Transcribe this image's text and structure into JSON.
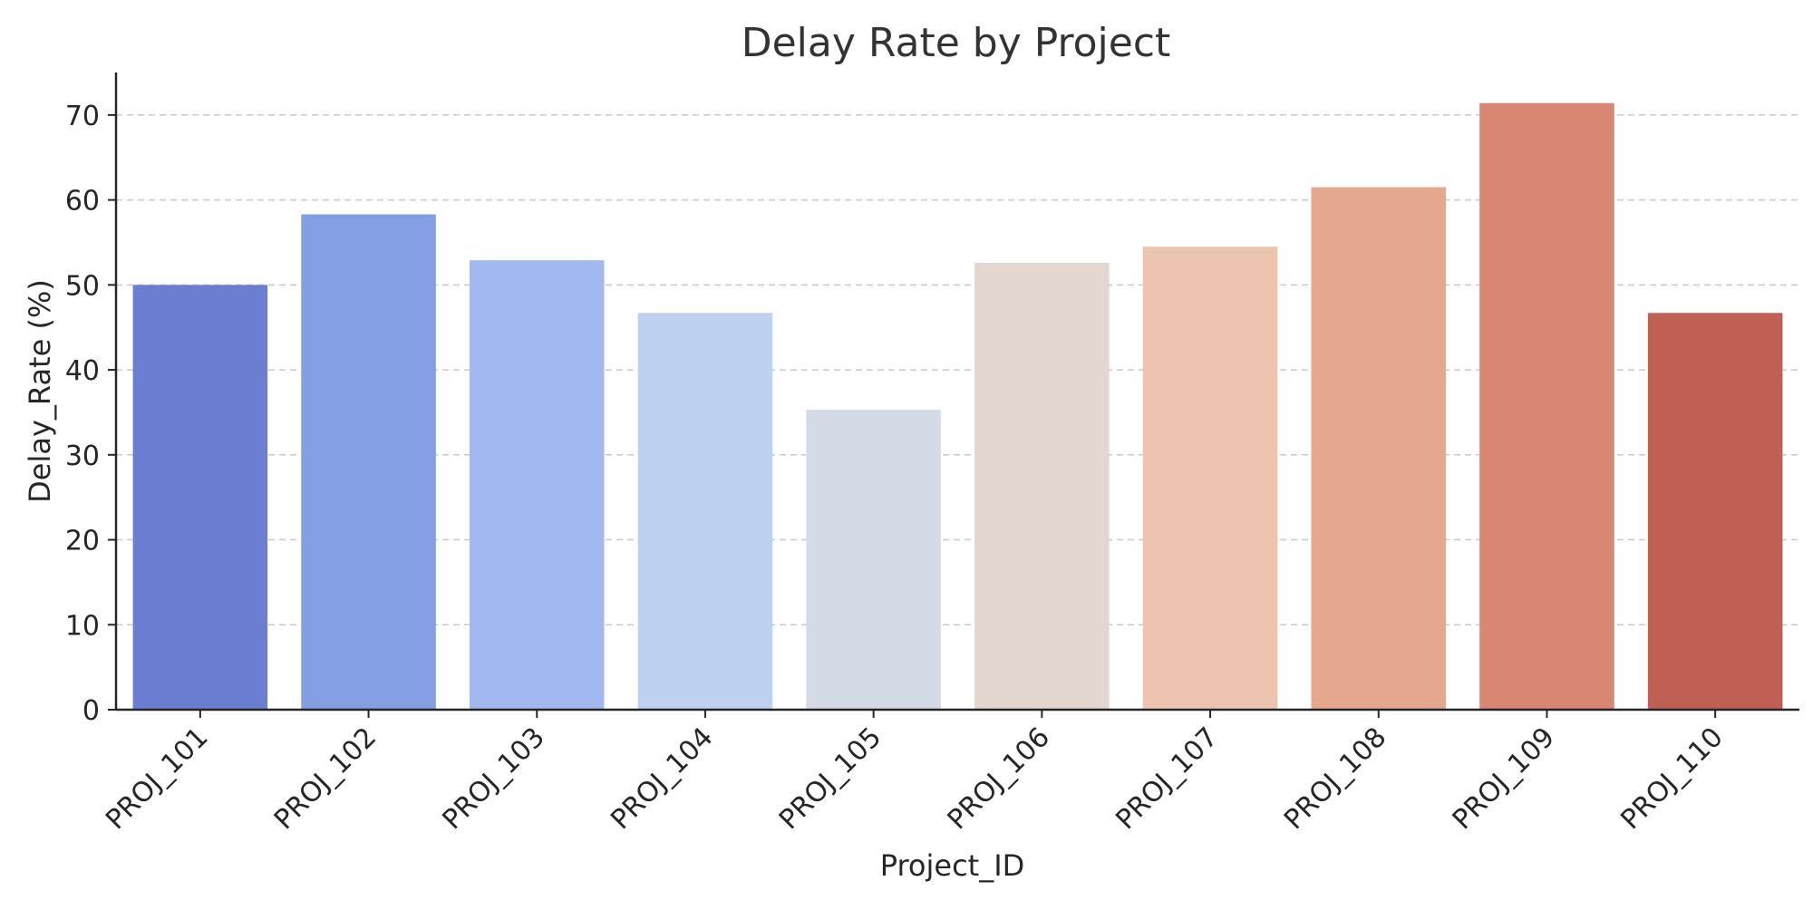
{
  "chart_data": {
    "type": "bar",
    "title": "Delay Rate by Project",
    "xlabel": "Project_ID",
    "ylabel": "Delay_Rate (%)",
    "categories": [
      "PROJ_101",
      "PROJ_102",
      "PROJ_103",
      "PROJ_104",
      "PROJ_105",
      "PROJ_106",
      "PROJ_107",
      "PROJ_108",
      "PROJ_109",
      "PROJ_110"
    ],
    "values": [
      50.0,
      58.3,
      52.9,
      46.7,
      35.3,
      52.6,
      54.5,
      61.5,
      71.4,
      46.7
    ],
    "ylim": [
      0,
      75
    ],
    "yticks": [
      0,
      10,
      20,
      30,
      40,
      50,
      60,
      70
    ],
    "grid": "y-dashed",
    "bar_colors": [
      "#6a7fd1",
      "#849fe4",
      "#a1b9f0",
      "#bfd1f1",
      "#d5dbe6",
      "#e3d7cf",
      "#ecc4af",
      "#e5a88f",
      "#d78772",
      "#c06055"
    ]
  }
}
